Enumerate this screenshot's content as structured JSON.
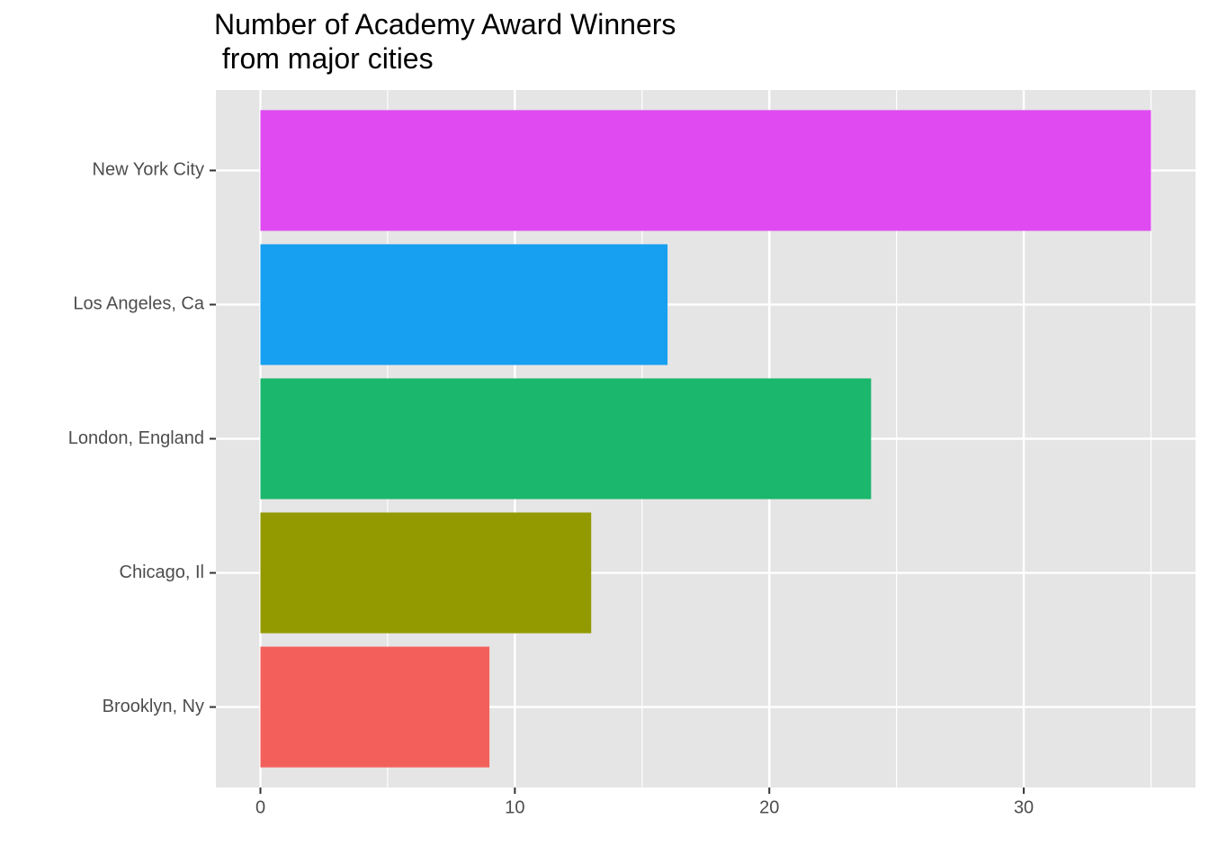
{
  "chart_data": {
    "type": "barh",
    "title": "Number of Academy Award Winners\n from major cities",
    "categories": [
      "New York City",
      "Los Angeles, Ca",
      "London, England",
      "Chicago, Il",
      "Brooklyn, Ny"
    ],
    "values": [
      35,
      16,
      24,
      13,
      9
    ],
    "colors": [
      "#df4af1",
      "#179ff1",
      "#1bb76c",
      "#939a00",
      "#f3605b"
    ],
    "xlim": [
      -1.75,
      36.75
    ],
    "xticks": [
      0,
      10,
      20,
      30
    ],
    "minor_xticks": [
      5,
      15,
      25,
      35
    ],
    "grid": true
  }
}
